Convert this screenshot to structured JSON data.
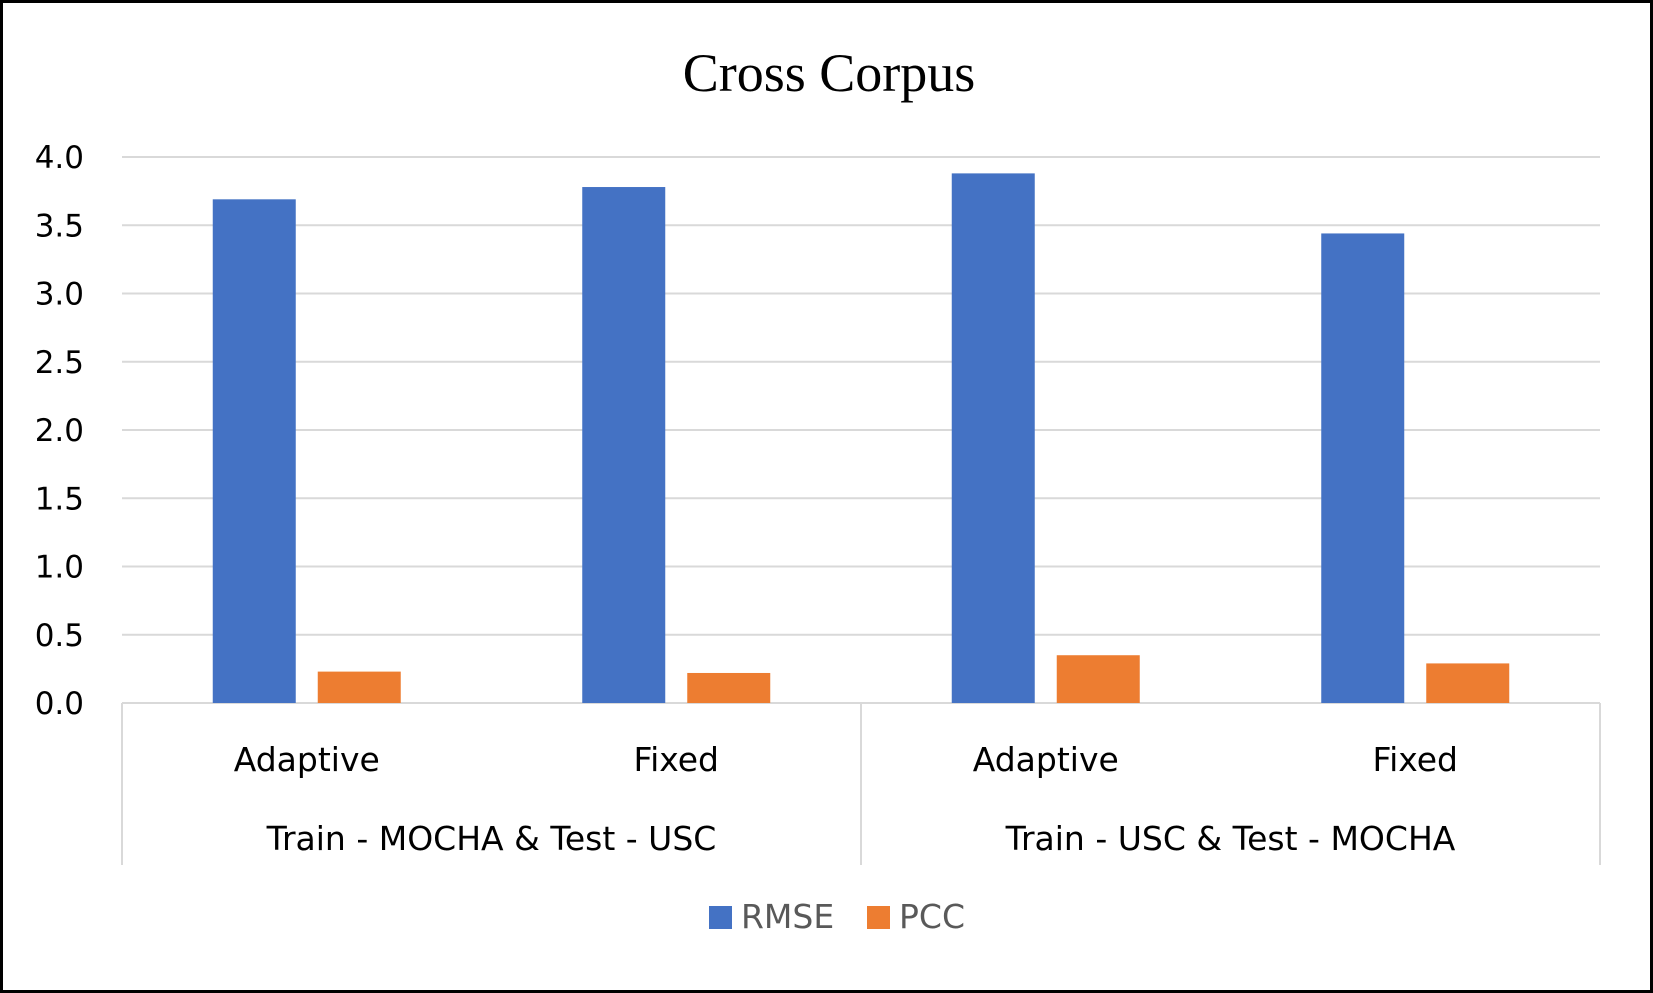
{
  "chart_data": {
    "type": "bar",
    "title": "Cross Corpus",
    "xlabel": "",
    "ylabel": "",
    "ylim": [
      0,
      4.0
    ],
    "yticks": [
      "0.0",
      "0.5",
      "1.0",
      "1.5",
      "2.0",
      "2.5",
      "3.0",
      "3.5",
      "4.0"
    ],
    "grid": true,
    "legend_position": "bottom",
    "groups": [
      {
        "label": "Train - MOCHA & Test - USC",
        "categories": [
          "Adaptive",
          "Fixed"
        ]
      },
      {
        "label": "Train - USC  & Test - MOCHA",
        "categories": [
          "Adaptive",
          "Fixed"
        ]
      }
    ],
    "categories": [
      "Adaptive",
      "Fixed",
      "Adaptive",
      "Fixed"
    ],
    "series": [
      {
        "name": "RMSE",
        "color": "#4472C4",
        "values": [
          3.69,
          3.78,
          3.88,
          3.44
        ]
      },
      {
        "name": "PCC",
        "color": "#ED7D31",
        "values": [
          0.23,
          0.22,
          0.35,
          0.29
        ]
      }
    ]
  }
}
